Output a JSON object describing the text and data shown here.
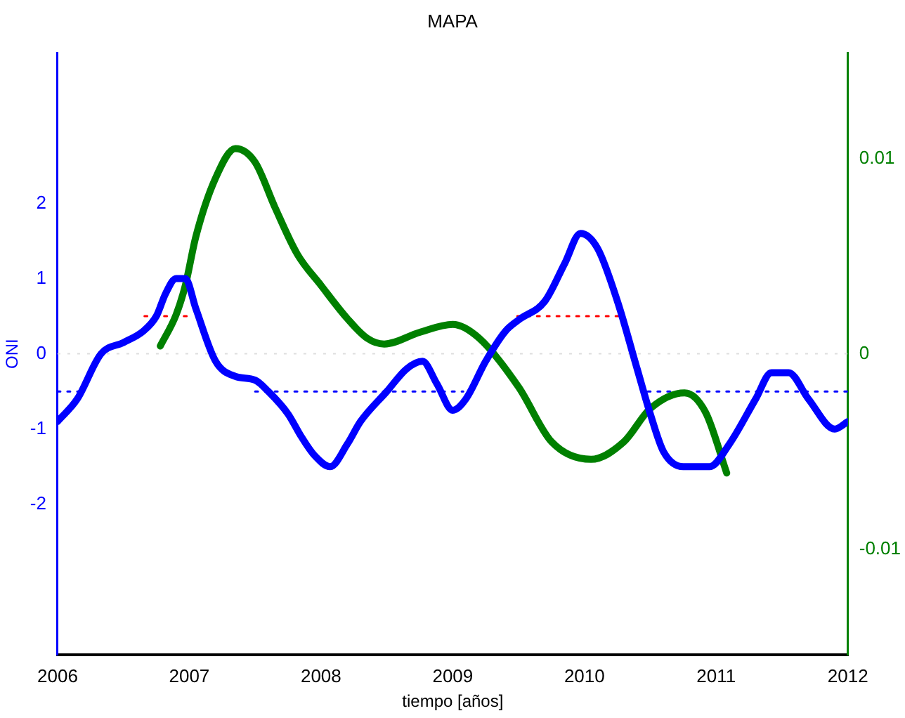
{
  "chart_data": {
    "type": "line",
    "title": "MAPA",
    "xlabel": "tiempo [años]",
    "ylabel": "ONI",
    "xlim": [
      2006,
      2012
    ],
    "xticks": [
      2006,
      2007,
      2008,
      2009,
      2010,
      2011,
      2012
    ],
    "ylim": [
      -4,
      4
    ],
    "yticks": [
      -2,
      -1,
      0,
      1,
      2
    ],
    "y2lim": [
      -0.0154,
      0.0154
    ],
    "y2ticks": [
      -0.01,
      0,
      0.01
    ],
    "grid": false,
    "legend": false,
    "marker": "none",
    "ref_lines": [
      {
        "axis": "y",
        "value": 0,
        "color": "#dddddd",
        "line_style": "dotted"
      }
    ],
    "series": [
      {
        "color": "#0000ff",
        "line_style": "solid",
        "x": [
          2006.0,
          2006.15,
          2006.33,
          2006.5,
          2006.65,
          2006.75,
          2006.82,
          2006.9,
          2006.97,
          2007.05,
          2007.2,
          2007.35,
          2007.5,
          2007.6,
          2007.75,
          2007.85,
          2007.95,
          2008.07,
          2008.2,
          2008.3,
          2008.5,
          2008.65,
          2008.77,
          2008.88,
          2009.0,
          2009.1,
          2009.25,
          2009.4,
          2009.5,
          2009.7,
          2009.85,
          2009.97,
          2010.1,
          2010.25,
          2010.4,
          2010.5,
          2010.6,
          2010.75,
          2010.95,
          2011.1,
          2011.3,
          2011.42,
          2011.55,
          2011.7,
          2011.9,
          2012.0
        ],
        "values": [
          -0.9,
          -0.6,
          0,
          0.15,
          0.3,
          0.5,
          0.8,
          1.0,
          1.0,
          0.6,
          -0.1,
          -0.3,
          -0.35,
          -0.5,
          -0.8,
          -1.1,
          -1.35,
          -1.5,
          -1.2,
          -0.9,
          -0.5,
          -0.2,
          -0.1,
          -0.4,
          -0.75,
          -0.6,
          -0.1,
          0.3,
          0.45,
          0.7,
          1.2,
          1.6,
          1.4,
          0.7,
          -0.2,
          -0.8,
          -1.3,
          -1.5,
          -1.5,
          -1.2,
          -0.6,
          -0.25,
          -0.25,
          -0.6,
          -1.0,
          -0.9
        ]
      },
      {
        "color": "#008000",
        "line_style": "solid",
        "axis": "y2",
        "x": [
          2006.78,
          2006.9,
          2006.97,
          2007.05,
          2007.2,
          2007.35,
          2007.5,
          2007.65,
          2007.82,
          2008.0,
          2008.2,
          2008.35,
          2008.48,
          2008.75,
          2009.0,
          2009.2,
          2009.5,
          2009.75,
          2010.05,
          2010.3,
          2010.5,
          2010.76,
          2010.92,
          2011.08
        ],
        "values": [
          0.0004,
          0.002,
          0.0035,
          0.006,
          0.009,
          0.0105,
          0.0098,
          0.0075,
          0.0051,
          0.0035,
          0.0018,
          0.0008,
          0.0005,
          0.0011,
          0.0015,
          0.0008,
          -0.0017,
          -0.0045,
          -0.0054,
          -0.0045,
          -0.0028,
          -0.002,
          -0.003,
          -0.0061
        ]
      },
      {
        "color": "#ff0000",
        "line_style": "dotted",
        "x": [
          2006.66,
          2007.0,
          2008.0,
          2009.49,
          2010.26
        ],
        "values": [
          0.5,
          0.5,
          null,
          0.5,
          0.5
        ]
      },
      {
        "color": "#0000ff",
        "line_style": "dotted",
        "x": [
          2006.0,
          2006.2,
          2006.8,
          2007.5,
          2009.08,
          2009.8,
          2010.48,
          2012.0
        ],
        "values": [
          -0.5,
          -0.5,
          null,
          -0.5,
          -0.5,
          null,
          -0.5,
          -0.5
        ]
      }
    ]
  }
}
